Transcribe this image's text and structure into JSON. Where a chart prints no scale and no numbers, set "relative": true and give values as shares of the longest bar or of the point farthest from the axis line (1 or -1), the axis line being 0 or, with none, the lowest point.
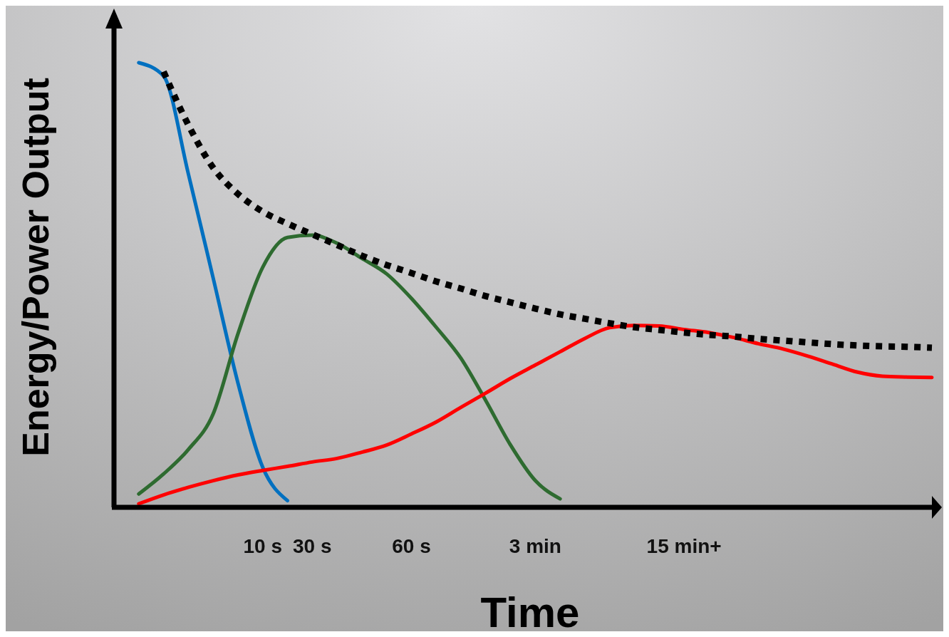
{
  "chart_data": {
    "type": "line",
    "relative": true,
    "xlabel": "Time",
    "ylabel": "Energy/Power Output",
    "categories": [
      null,
      null,
      null,
      null,
      null,
      null,
      "10 s",
      null,
      "30 s",
      null,
      null,
      null,
      "60 s",
      null,
      null,
      null,
      null,
      "3 min",
      null,
      null,
      null,
      null,
      null,
      "15 min+",
      null,
      null,
      null,
      null,
      null,
      null,
      null,
      null,
      null,
      null
    ],
    "series": [
      {
        "color": "#0070c0",
        "line_style": "solid",
        "values": [
          null,
          1,
          0.97,
          0.75,
          0.516,
          0.28,
          0.09,
          0.015,
          null,
          null,
          null,
          null,
          null,
          null,
          null,
          null,
          null,
          null,
          null,
          null,
          null,
          null,
          null,
          null,
          null,
          null,
          null,
          null,
          null,
          null,
          null,
          null,
          null,
          null
        ]
      },
      {
        "color": "#2e6b30",
        "line_style": "solid",
        "values": [
          null,
          0.03,
          0.075,
          0.13,
          0.21,
          0.39,
          0.54,
          0.607,
          0.612,
          0.594,
          0.56,
          0.525,
          0.47,
          0.405,
          0.335,
          0.24,
          0.14,
          0.06,
          0.019,
          null,
          null,
          null,
          null,
          null,
          null,
          null,
          null,
          null,
          null,
          null,
          null,
          null,
          null,
          null
        ]
      },
      {
        "color": "#ff0000",
        "line_style": "solid",
        "values": [
          null,
          0.008,
          0.028,
          0.045,
          0.06,
          0.073,
          0.083,
          0.092,
          0.102,
          0.11,
          0.124,
          0.14,
          0.165,
          0.192,
          0.225,
          0.257,
          0.29,
          0.32,
          0.35,
          0.38,
          0.404,
          0.409,
          0.408,
          0.4,
          0.393,
          0.382,
          0.368,
          0.356,
          0.34,
          0.322,
          0.304,
          0.295,
          0.293,
          0.292
        ]
      },
      {
        "color": "#000000",
        "line_style": "dotted",
        "values": [
          null,
          null,
          0.98,
          0.86,
          0.764,
          0.705,
          0.665,
          0.638,
          0.614,
          0.59,
          0.566,
          0.545,
          0.527,
          0.508,
          0.492,
          0.475,
          0.461,
          0.447,
          0.434,
          0.424,
          0.414,
          0.405,
          0.399,
          0.393,
          0.388,
          0.384,
          0.379,
          0.375,
          0.371,
          0.367,
          0.364,
          0.362,
          0.361,
          0.359
        ]
      }
    ]
  }
}
